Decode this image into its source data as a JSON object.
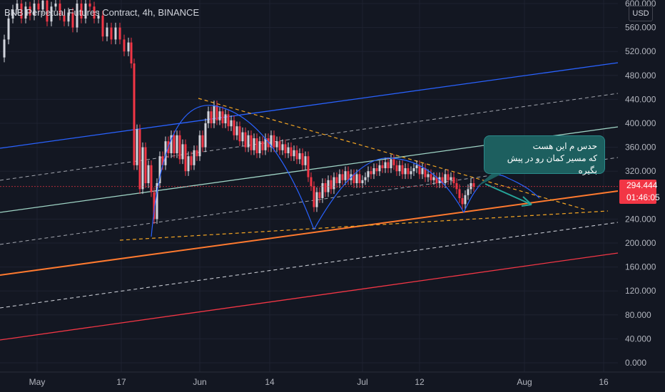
{
  "header": {
    "title": "BNB Perpetual Futures Contract, 4h, BINANCE",
    "currency": "USD"
  },
  "price": {
    "current": "294.444",
    "countdown": "01:46:05",
    "color": "#f23645"
  },
  "annotation": {
    "line1": "حدس م این هست",
    "line2": "که مسیر کمان رو در پیش بگیره"
  },
  "colors": {
    "background": "#131722",
    "up": "#d1d4dc",
    "down": "#f23645",
    "channel_blue": "#2962ff",
    "channel_teal": "#9fd4c5",
    "support_orange": "#ff7a2f",
    "lower_red": "#f23645",
    "dashed": "#d1d4dc",
    "triangle": "#f5a623",
    "arc": "#2962ff",
    "arrow": "#26a69a"
  },
  "chart_data": {
    "type": "candlestick",
    "symbol": "BNB Perpetual Futures Contract",
    "timeframe": "4h",
    "exchange": "BINANCE",
    "y_axis": {
      "ticks": [
        "600.000",
        "560.000",
        "520.000",
        "480.000",
        "440.000",
        "400.000",
        "360.000",
        "320.000",
        "240.000",
        "200.000",
        "160.000",
        "120.000",
        "80.000",
        "40.000",
        "0.000"
      ],
      "range": [
        -10,
        605
      ]
    },
    "x_axis": {
      "ticks": [
        "May",
        "17",
        "Jun",
        "14",
        "Jul",
        "12",
        "Aug",
        "16"
      ]
    },
    "price_path": [
      [
        0,
        510
      ],
      [
        6,
        540
      ],
      [
        12,
        575
      ],
      [
        18,
        590
      ],
      [
        24,
        600
      ],
      [
        30,
        575
      ],
      [
        36,
        595
      ],
      [
        42,
        580
      ],
      [
        48,
        600
      ],
      [
        54,
        590
      ],
      [
        60,
        605
      ],
      [
        66,
        570
      ],
      [
        72,
        595
      ],
      [
        78,
        600
      ],
      [
        84,
        580
      ],
      [
        90,
        570
      ],
      [
        96,
        585
      ],
      [
        102,
        560
      ],
      [
        108,
        600
      ],
      [
        114,
        575
      ],
      [
        120,
        600
      ],
      [
        126,
        595
      ],
      [
        132,
        575
      ],
      [
        138,
        580
      ],
      [
        144,
        545
      ],
      [
        150,
        560
      ],
      [
        156,
        540
      ],
      [
        162,
        560
      ],
      [
        168,
        540
      ],
      [
        174,
        520
      ],
      [
        180,
        535
      ],
      [
        184,
        500
      ],
      [
        188,
        330
      ],
      [
        192,
        390
      ],
      [
        196,
        290
      ],
      [
        200,
        360
      ],
      [
        204,
        300
      ],
      [
        208,
        330
      ],
      [
        212,
        285
      ],
      [
        216,
        240
      ],
      [
        220,
        300
      ],
      [
        224,
        345
      ],
      [
        228,
        330
      ],
      [
        232,
        370
      ],
      [
        236,
        350
      ],
      [
        240,
        380
      ],
      [
        244,
        350
      ],
      [
        248,
        380
      ],
      [
        252,
        340
      ],
      [
        256,
        365
      ],
      [
        260,
        320
      ],
      [
        264,
        345
      ],
      [
        268,
        330
      ],
      [
        272,
        355
      ],
      [
        276,
        345
      ],
      [
        280,
        380
      ],
      [
        284,
        360
      ],
      [
        288,
        400
      ],
      [
        292,
        420
      ],
      [
        296,
        400
      ],
      [
        300,
        430
      ],
      [
        304,
        405
      ],
      [
        308,
        420
      ],
      [
        312,
        400
      ],
      [
        316,
        415
      ],
      [
        320,
        395
      ],
      [
        324,
        405
      ],
      [
        328,
        380
      ],
      [
        332,
        395
      ],
      [
        336,
        370
      ],
      [
        340,
        385
      ],
      [
        344,
        360
      ],
      [
        348,
        380
      ],
      [
        352,
        355
      ],
      [
        356,
        375
      ],
      [
        360,
        350
      ],
      [
        364,
        370
      ],
      [
        368,
        355
      ],
      [
        372,
        375
      ],
      [
        376,
        360
      ],
      [
        380,
        380
      ],
      [
        384,
        360
      ],
      [
        388,
        370
      ],
      [
        392,
        355
      ],
      [
        396,
        365
      ],
      [
        400,
        350
      ],
      [
        404,
        360
      ],
      [
        408,
        345
      ],
      [
        412,
        355
      ],
      [
        416,
        340
      ],
      [
        420,
        350
      ],
      [
        424,
        330
      ],
      [
        428,
        345
      ],
      [
        432,
        310
      ],
      [
        436,
        295
      ],
      [
        440,
        260
      ],
      [
        444,
        285
      ],
      [
        448,
        275
      ],
      [
        452,
        300
      ],
      [
        456,
        285
      ],
      [
        460,
        305
      ],
      [
        464,
        290
      ],
      [
        468,
        310
      ],
      [
        472,
        300
      ],
      [
        476,
        315
      ],
      [
        480,
        305
      ],
      [
        484,
        320
      ],
      [
        488,
        305
      ],
      [
        492,
        315
      ],
      [
        496,
        300
      ],
      [
        500,
        315
      ],
      [
        504,
        300
      ],
      [
        508,
        305
      ],
      [
        512,
        310
      ],
      [
        516,
        320
      ],
      [
        520,
        315
      ],
      [
        524,
        325
      ],
      [
        528,
        320
      ],
      [
        532,
        330
      ],
      [
        536,
        325
      ],
      [
        540,
        335
      ],
      [
        544,
        325
      ],
      [
        548,
        340
      ],
      [
        552,
        330
      ],
      [
        556,
        320
      ],
      [
        560,
        330
      ],
      [
        564,
        315
      ],
      [
        568,
        325
      ],
      [
        572,
        315
      ],
      [
        576,
        320
      ],
      [
        580,
        325
      ],
      [
        584,
        330
      ],
      [
        588,
        315
      ],
      [
        592,
        325
      ],
      [
        596,
        310
      ],
      [
        600,
        315
      ],
      [
        604,
        305
      ],
      [
        608,
        310
      ],
      [
        612,
        300
      ],
      [
        616,
        310
      ],
      [
        620,
        300
      ],
      [
        624,
        315
      ],
      [
        628,
        305
      ],
      [
        632,
        310
      ],
      [
        636,
        300
      ],
      [
        640,
        290
      ],
      [
        644,
        275
      ],
      [
        648,
        265
      ],
      [
        652,
        280
      ],
      [
        656,
        290
      ],
      [
        660,
        300
      ],
      [
        664,
        294
      ]
    ]
  }
}
